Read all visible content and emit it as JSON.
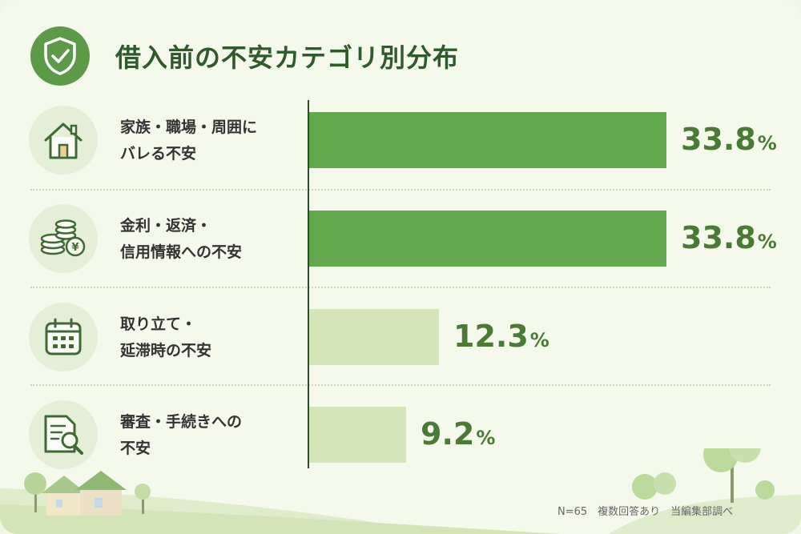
{
  "title": "借入前の不安カテゴリ別分布",
  "colors": {
    "accent": "#5c9a47",
    "bar_strong": "#62a84c",
    "bar_light": "#d3e5b9",
    "text_value": "#4a7a35"
  },
  "footnote": "N=65　複数回答あり　当編集部調べ",
  "chart_data": {
    "type": "bar",
    "orientation": "horizontal",
    "title": "借入前の不安カテゴリ別分布",
    "categories": [
      "家族・職場・周囲にバレる不安",
      "金利・返済・信用情報への不安",
      "取り立て・延滞時の不安",
      "審査・手続きへの不安"
    ],
    "values": [
      33.8,
      33.8,
      12.3,
      9.2
    ],
    "unit": "%",
    "max": 40,
    "rows": [
      {
        "line1": "家族・職場・周囲に",
        "line2": "バレる不安",
        "value": 33.8,
        "value_text": "33.8",
        "icon": "house-icon",
        "emphasis": true
      },
      {
        "line1": "金利・返済・",
        "line2": "信用情報への不安",
        "value": 33.8,
        "value_text": "33.8",
        "icon": "coins-icon",
        "emphasis": true
      },
      {
        "line1": "取り立て・",
        "line2": "延滞時の不安",
        "value": 12.3,
        "value_text": "12.3",
        "icon": "calendar-icon",
        "emphasis": false
      },
      {
        "line1": "審査・手続きへの",
        "line2": "不安",
        "value": 9.2,
        "value_text": "9.2",
        "icon": "document-search-icon",
        "emphasis": false
      }
    ]
  }
}
